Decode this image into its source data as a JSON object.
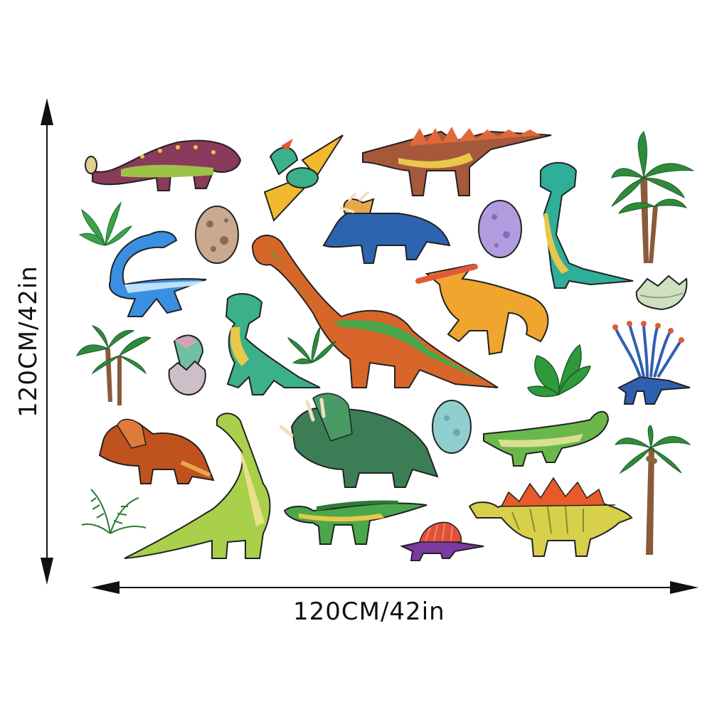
{
  "dimensions": {
    "width_label": "120CM/42in",
    "height_label": "120CM/42in"
  },
  "stickers": [
    {
      "icon": "ankylosaurus-icon",
      "color": "#8a3a5a"
    },
    {
      "icon": "pterodactyl-icon",
      "color": "#3bb08a"
    },
    {
      "icon": "spinosaurus-icon",
      "color": "#a6593a"
    },
    {
      "icon": "t-rex-icon",
      "color": "#2fae9a"
    },
    {
      "icon": "palm-tree-icon",
      "color": "#2e8b3a"
    },
    {
      "icon": "fern-plant-icon",
      "color": "#3aa34a"
    },
    {
      "icon": "spotted-egg-icon",
      "color": "#c9a98f"
    },
    {
      "icon": "styracosaurus-icon",
      "color": "#2e63b0"
    },
    {
      "icon": "purple-egg-icon",
      "color": "#b39be0"
    },
    {
      "icon": "plesiosaur-icon",
      "color": "#3a8fe0"
    },
    {
      "icon": "brachiosaurus-icon",
      "color": "#d8662a"
    },
    {
      "icon": "parasaurolophus-icon",
      "color": "#f0a52e"
    },
    {
      "icon": "cracked-egg-icon",
      "color": "#cfe0c0"
    },
    {
      "icon": "tree-cluster-icon",
      "color": "#2e8b3a"
    },
    {
      "icon": "hatching-baby-dino-icon",
      "color": "#6fc0a0"
    },
    {
      "icon": "green-t-rex-icon",
      "color": "#3bb08a"
    },
    {
      "icon": "grass-tuft-icon",
      "color": "#2e8b3a"
    },
    {
      "icon": "leafy-bush-icon",
      "color": "#2e9a3a"
    },
    {
      "icon": "sail-back-dinosaur-icon",
      "color": "#2f5fb0"
    },
    {
      "icon": "protoceratops-icon",
      "color": "#c0521e"
    },
    {
      "icon": "diplodocus-icon",
      "color": "#a8d04a"
    },
    {
      "icon": "triceratops-icon",
      "color": "#3b7e55"
    },
    {
      "icon": "teal-egg-icon",
      "color": "#8fcfd0"
    },
    {
      "icon": "crocodile-icon",
      "color": "#6ab84a"
    },
    {
      "icon": "single-palm-icon",
      "color": "#2e8b3a"
    },
    {
      "icon": "fern-leaf-icon",
      "color": "#2e7a3a"
    },
    {
      "icon": "iguanodon-icon",
      "color": "#4aa84a"
    },
    {
      "icon": "dimetrodon-icon",
      "color": "#7a3aa0"
    },
    {
      "icon": "stegosaurus-icon",
      "color": "#d8d04a"
    }
  ]
}
